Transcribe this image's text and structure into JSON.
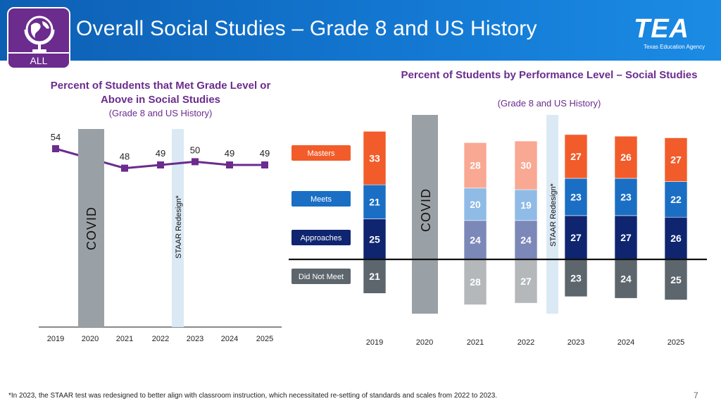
{
  "header": {
    "title": "Overall Social Studies – Grade 8 and US History",
    "badge_label": "ALL",
    "org_logo_text": "TEA",
    "org_name": "Texas Education Agency"
  },
  "colors": {
    "header_blue": "#1377d1",
    "purple": "#6b2c8e",
    "covid_gray": "#9aa1a6",
    "redesign_blue": "#dbe9f5",
    "masters": "#f25c2a",
    "meets": "#1a6fc4",
    "approaches": "#0f2570",
    "did_not_meet": "#5d666d"
  },
  "chart_data": [
    {
      "type": "line",
      "title": "Percent of Students that Met Grade Level or Above in Social Studies",
      "subtitle": "(Grade 8 and US History)",
      "x": [
        "2019",
        "2020",
        "2021",
        "2022",
        "2023",
        "2024",
        "2025"
      ],
      "values": [
        54,
        null,
        48,
        49,
        50,
        49,
        49
      ],
      "labels": [
        "54",
        "",
        "48",
        "49",
        "50",
        "49",
        "49"
      ],
      "annotations": {
        "covid": "COVID",
        "redesign": "STAAR Redesign*"
      }
    },
    {
      "type": "bar",
      "stacked": true,
      "diverging": true,
      "title": "Percent of Students by Performance Level – Social Studies",
      "subtitle": "(Grade 8 and US History)",
      "categories": [
        "2019",
        "2020",
        "2021",
        "2022",
        "2023",
        "2024",
        "2025"
      ],
      "legend": [
        "Masters",
        "Meets",
        "Approaches",
        "Did Not Meet"
      ],
      "series": [
        {
          "name": "Masters",
          "values": [
            33,
            null,
            28,
            30,
            27,
            26,
            27
          ]
        },
        {
          "name": "Meets",
          "values": [
            21,
            null,
            20,
            19,
            23,
            23,
            22
          ]
        },
        {
          "name": "Approaches",
          "values": [
            25,
            null,
            24,
            24,
            27,
            27,
            26
          ]
        },
        {
          "name": "Did Not Meet",
          "values": [
            21,
            null,
            28,
            27,
            23,
            24,
            25
          ]
        }
      ],
      "annotations": {
        "covid": "COVID",
        "redesign": "STAAR Redesign*"
      }
    }
  ],
  "footnote": "*In 2023, the STAAR test was redesigned to better align with classroom instruction, which necessitated re-setting of standards and scales from 2022 to 2023.",
  "page_number": "7"
}
